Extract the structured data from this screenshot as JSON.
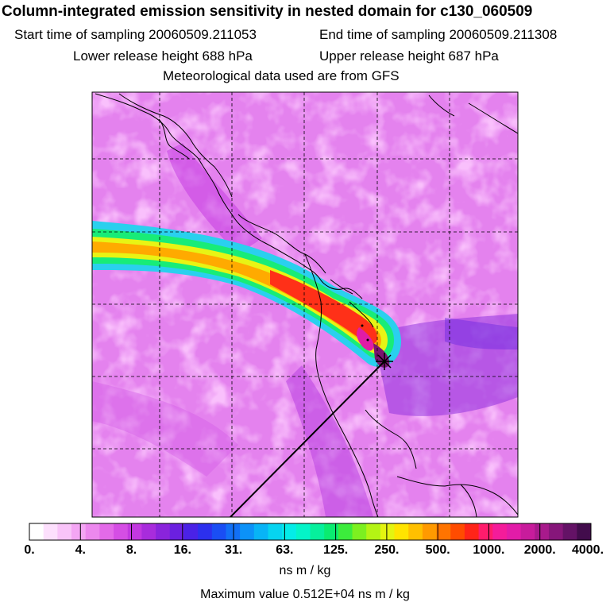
{
  "title": "Column-integrated emission sensitivity in nested domain for c130_060509",
  "sampling": {
    "start_label": "Start time of sampling 20060509.211053",
    "end_label": "End time of sampling 20060509.211308"
  },
  "release": {
    "lower_label": "Lower release height  688 hPa",
    "upper_label": "Upper release height  687 hPa"
  },
  "met_label": "Meteorological data used are from GFS",
  "colorbar": {
    "tick_labels": [
      "0.",
      "4.",
      "8.",
      "16.",
      "31.",
      "63.",
      "125.",
      "250.",
      "500.",
      "1000.",
      "2000.",
      "4000."
    ],
    "units": "ns m / kg",
    "colors": [
      "#ffffff",
      "#fde0fd",
      "#f9c4f9",
      "#f4a6f4",
      "#ec88ee",
      "#e36ae8",
      "#d54ee4",
      "#c238e0",
      "#a82cdc",
      "#8a24dc",
      "#6b20e0",
      "#4a22e6",
      "#2c30ee",
      "#1a4ef4",
      "#1270f6",
      "#0c92f8",
      "#08b4f6",
      "#06d4f0",
      "#04ece8",
      "#04f4c8",
      "#06f09c",
      "#0aec70",
      "#3cec3c",
      "#7cf020",
      "#b4f414",
      "#e4f410",
      "#ffe400",
      "#ffc000",
      "#ff9a00",
      "#ff7400",
      "#ff4c00",
      "#ff2418",
      "#ff1c6c",
      "#f41c9a",
      "#e21ca8",
      "#c81c9c",
      "#a81a8c",
      "#86167a",
      "#641266",
      "#420c4c"
    ]
  },
  "max_value_label": "Maximum value  0.512E+04 ns m / kg"
}
